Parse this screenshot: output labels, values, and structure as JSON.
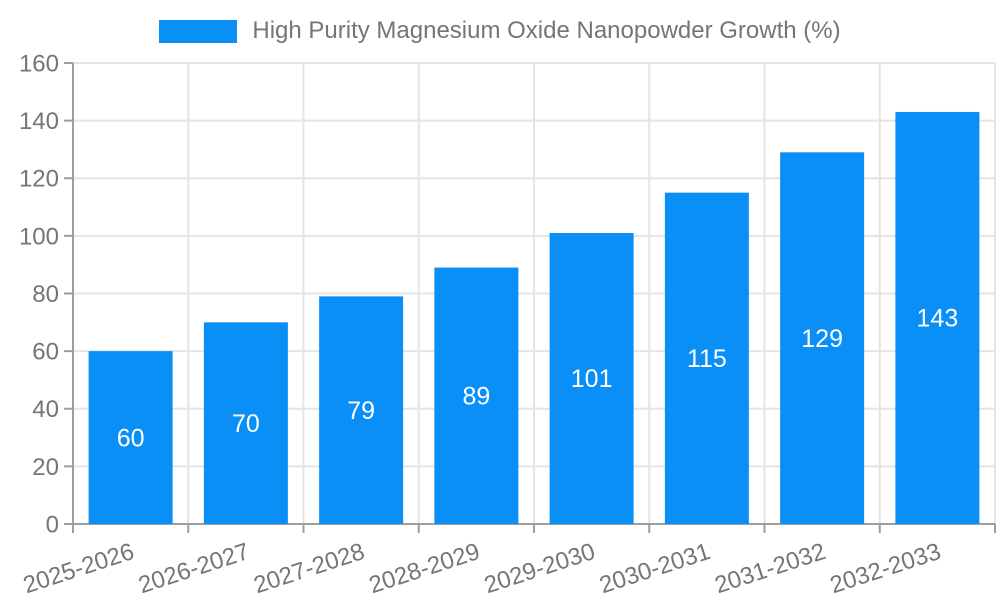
{
  "chart_data": {
    "type": "bar",
    "title": "High Purity Magnesium Oxide Nanopowder Growth (%)",
    "legend_position": "top-center",
    "categories": [
      "2025-2026",
      "2026-2027",
      "2027-2028",
      "2028-2029",
      "2029-2030",
      "2030-2031",
      "2031-2032",
      "2032-2033"
    ],
    "values": [
      60,
      70,
      79,
      89,
      101,
      115,
      129,
      143
    ],
    "ylim": [
      0,
      160
    ],
    "yticks": [
      0,
      20,
      40,
      60,
      80,
      100,
      120,
      140,
      160
    ],
    "grid": true,
    "xlabel": "",
    "ylabel": "",
    "colors": {
      "bar": "#0a8ff7",
      "bar_label": "#ffffff",
      "axis": "#9e9e9e",
      "grid": "#e4e4e4",
      "text": "#757575",
      "background": "#ffffff"
    }
  }
}
